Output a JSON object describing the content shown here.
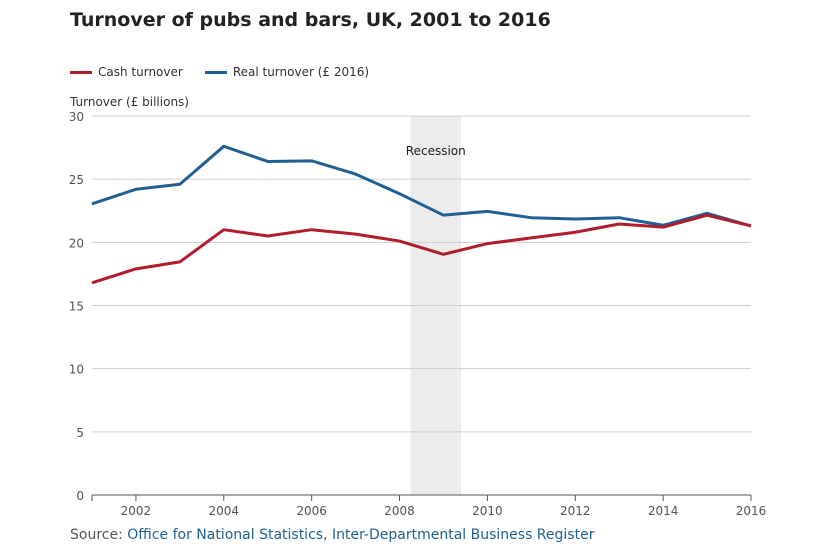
{
  "chart_data": {
    "type": "line",
    "title": "Turnover of pubs and bars, UK, 2001 to 2016",
    "ylabel": "Turnover (£ billions)",
    "xlabel": "",
    "x": [
      2001,
      2002,
      2003,
      2004,
      2005,
      2006,
      2007,
      2008,
      2009,
      2010,
      2011,
      2012,
      2013,
      2014,
      2015,
      2016
    ],
    "series": [
      {
        "name": "Cash turnover",
        "color": "#b21d2e",
        "values": [
          16.8,
          17.9,
          18.45,
          21.0,
          20.5,
          21.0,
          20.65,
          20.1,
          19.05,
          19.9,
          20.35,
          20.8,
          21.45,
          21.2,
          22.15,
          21.3
        ]
      },
      {
        "name": "Real turnover (£ 2016)",
        "color": "#206095",
        "values": [
          23.05,
          24.2,
          24.6,
          27.6,
          26.4,
          26.45,
          25.4,
          23.85,
          22.15,
          22.45,
          21.95,
          21.85,
          21.95,
          21.35,
          22.3,
          21.3
        ]
      }
    ],
    "xlim": [
      2001,
      2016
    ],
    "ylim": [
      0,
      30
    ],
    "yticks": [
      0,
      5,
      10,
      15,
      20,
      25,
      30
    ],
    "xticks": [
      2002,
      2004,
      2006,
      2008,
      2010,
      2012,
      2014,
      2016
    ],
    "grid": true,
    "legend_position": "top-left",
    "annotations": [
      {
        "text": "Recession",
        "x_start": 2008.25,
        "x_end": 2009.4,
        "color": "#ececec"
      }
    ]
  },
  "source": {
    "label": "Source:",
    "text": "Office for National Statistics, Inter-Departmental Business Register"
  }
}
